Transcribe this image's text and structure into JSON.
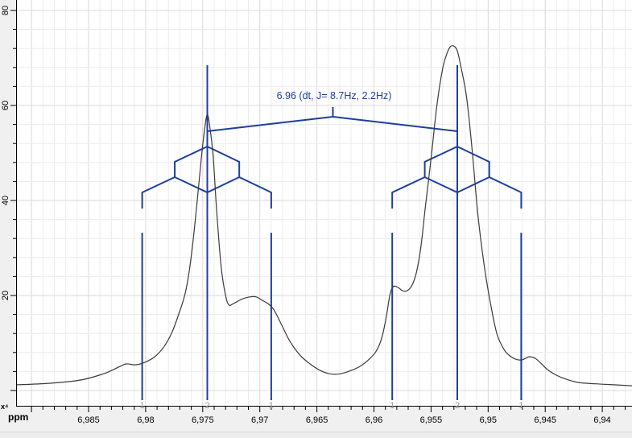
{
  "window": {
    "plot_background": "#ffffff",
    "axis_band_color": "#f0f0f0"
  },
  "colors": {
    "annotation_blue": "#1c3f9e",
    "curve": "#3a3a3a",
    "grid_minor": "#ececec",
    "grid_major": "#d9d9d9",
    "axis": "#000000",
    "integral_label_gray": "#999999"
  },
  "labels": {
    "x_axis_unit": "ppm",
    "y_axis_multiplier": "x⁴"
  },
  "chart_data": {
    "type": "line",
    "title": "",
    "xlabel": "ppm",
    "ylabel": "",
    "x_decimal_separator": ",",
    "xlim": [
      6.9914,
      6.9373
    ],
    "ylim": [
      -3.2,
      82.2
    ],
    "x_axis_reversed": true,
    "grid": "on",
    "x_major_step_ppm": 0.005,
    "x_minor_step_ppm": 0.001,
    "y_major_step": 20,
    "y_minor_step": 4,
    "x_tick_labels": [
      {
        "ppm": 6.985,
        "label": "6,985"
      },
      {
        "ppm": 6.98,
        "label": "6,98"
      },
      {
        "ppm": 6.975,
        "label": "6,975"
      },
      {
        "ppm": 6.97,
        "label": "6,97"
      },
      {
        "ppm": 6.965,
        "label": "6,965"
      },
      {
        "ppm": 6.96,
        "label": "6,96"
      },
      {
        "ppm": 6.955,
        "label": "6,955"
      },
      {
        "ppm": 6.95,
        "label": "6,95"
      },
      {
        "ppm": 6.945,
        "label": "6,945"
      },
      {
        "ppm": 6.94,
        "label": "6,94"
      }
    ],
    "y_tick_labels": [
      {
        "value": 20,
        "label": "20"
      },
      {
        "value": 40,
        "label": "40"
      },
      {
        "value": 60,
        "label": "60"
      },
      {
        "value": 80,
        "label": "80"
      }
    ],
    "annotation": {
      "label": "6.96 (dt, J= 8.7Hz, 2.2Hz)",
      "position_ppm": 6.9636,
      "shift_ppm": 6.96,
      "multiplet_type": "dt",
      "J_Hz": [
        8.7,
        2.2
      ]
    },
    "peak_lines": [
      {
        "ppm": 6.9803,
        "intensity": 1,
        "label": "1"
      },
      {
        "ppm": 6.9746,
        "intensity": 2,
        "label": "2"
      },
      {
        "ppm": 6.969,
        "intensity": 1,
        "label": "1"
      },
      {
        "ppm": 6.9584,
        "intensity": 1,
        "label": "1"
      },
      {
        "ppm": 6.9527,
        "intensity": 2,
        "label": "2"
      },
      {
        "ppm": 6.9471,
        "intensity": 1,
        "label": "1"
      }
    ],
    "multiplet_trees": [
      {
        "center_ppm": 6.9746,
        "outer_ppm": [
          6.9803,
          6.969
        ]
      },
      {
        "center_ppm": 6.9527,
        "outer_ppm": [
          6.9584,
          6.9471
        ]
      }
    ],
    "curve_ppm_value": [
      [
        6.9913,
        1.2
      ],
      [
        6.9885,
        1.5
      ],
      [
        6.9857,
        2.2
      ],
      [
        6.9836,
        3.6
      ],
      [
        6.9824,
        4.9
      ],
      [
        6.9817,
        5.6
      ],
      [
        6.9809,
        5.4
      ],
      [
        6.9801,
        5.9
      ],
      [
        6.9792,
        7.1
      ],
      [
        6.9784,
        9.2
      ],
      [
        6.9777,
        12.2
      ],
      [
        6.9771,
        16.1
      ],
      [
        6.9765,
        20.8
      ],
      [
        6.976,
        28.3
      ],
      [
        6.9755,
        39.5
      ],
      [
        6.9751,
        49.5
      ],
      [
        6.9748,
        55.6
      ],
      [
        6.9746,
        58.1
      ],
      [
        6.9744,
        55.9
      ],
      [
        6.9741,
        49.7
      ],
      [
        6.9738,
        38.6
      ],
      [
        6.9734,
        26.3
      ],
      [
        6.973,
        20.0
      ],
      [
        6.9727,
        18.0
      ],
      [
        6.9723,
        18.3
      ],
      [
        6.9716,
        19.2
      ],
      [
        6.9709,
        19.7
      ],
      [
        6.9703,
        19.7
      ],
      [
        6.9698,
        19.0
      ],
      [
        6.9693,
        18.3
      ],
      [
        6.9688,
        17.1
      ],
      [
        6.9681,
        13.9
      ],
      [
        6.9674,
        10.5
      ],
      [
        6.9665,
        7.5
      ],
      [
        6.9656,
        5.6
      ],
      [
        6.9647,
        4.2
      ],
      [
        6.964,
        3.6
      ],
      [
        6.9634,
        3.4
      ],
      [
        6.9628,
        3.6
      ],
      [
        6.962,
        4.2
      ],
      [
        6.9612,
        5.1
      ],
      [
        6.9605,
        6.4
      ],
      [
        6.9598,
        8.3
      ],
      [
        6.9593,
        11.2
      ],
      [
        6.9589,
        15.8
      ],
      [
        6.9586,
        20.2
      ],
      [
        6.9583,
        21.9
      ],
      [
        6.9579,
        21.7
      ],
      [
        6.9575,
        21.0
      ],
      [
        6.9571,
        21.0
      ],
      [
        6.9567,
        22.0
      ],
      [
        6.9563,
        24.7
      ],
      [
        6.9559,
        30.0
      ],
      [
        6.9555,
        38.6
      ],
      [
        6.955,
        48.8
      ],
      [
        6.9545,
        59.8
      ],
      [
        6.954,
        67.6
      ],
      [
        6.9536,
        71.0
      ],
      [
        6.9533,
        72.4
      ],
      [
        6.953,
        72.5
      ],
      [
        6.9527,
        71.5
      ],
      [
        6.9524,
        68.3
      ],
      [
        6.9519,
        61.9
      ],
      [
        6.9514,
        50.7
      ],
      [
        6.9509,
        37.1
      ],
      [
        6.9503,
        25.6
      ],
      [
        6.9497,
        17.1
      ],
      [
        6.9492,
        11.7
      ],
      [
        6.9486,
        8.6
      ],
      [
        6.9481,
        7.3
      ],
      [
        6.9476,
        6.6
      ],
      [
        6.9471,
        6.4
      ],
      [
        6.9467,
        6.8
      ],
      [
        6.9464,
        7.1
      ],
      [
        6.9459,
        6.8
      ],
      [
        6.9454,
        5.8
      ],
      [
        6.9448,
        4.4
      ],
      [
        6.944,
        3.2
      ],
      [
        6.9432,
        2.4
      ],
      [
        6.9421,
        1.7
      ],
      [
        6.9406,
        1.4
      ],
      [
        6.939,
        1.2
      ],
      [
        6.9374,
        1.0
      ]
    ]
  }
}
